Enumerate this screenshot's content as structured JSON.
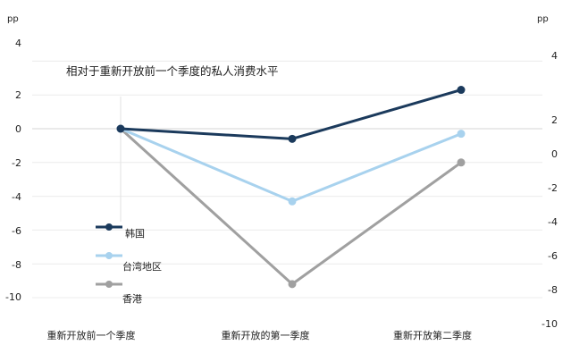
{
  "chart_data": {
    "type": "line",
    "title": "",
    "annotation": "相对于重新开放前一个季度的私人消费水平",
    "categories": [
      "重新开放前一个季度",
      "重新开放的第一季度",
      "重新开放第二季度"
    ],
    "left_axis": {
      "unit": "pp",
      "ticks": [
        "4",
        "2",
        "0",
        "-2",
        "-4",
        "-6",
        "-8",
        "-10"
      ],
      "range": [
        -10,
        4
      ]
    },
    "right_axis": {
      "unit": "pp",
      "ticks": [
        "4",
        "2",
        "0",
        "-2",
        "-4",
        "-6",
        "-8",
        "-10"
      ]
    },
    "grid": "horizontal",
    "legend_position": "left-bottom",
    "series": [
      {
        "name": "韩国",
        "values": [
          0,
          -0.6,
          2.3
        ],
        "color": "#1b3a5c"
      },
      {
        "name": "台湾地区",
        "values": [
          0,
          -4.3,
          -0.3
        ],
        "color": "#a8d2ee"
      },
      {
        "name": "香港",
        "values": [
          0,
          -9.2,
          -2.0
        ],
        "color": "#a0a0a0"
      }
    ]
  }
}
